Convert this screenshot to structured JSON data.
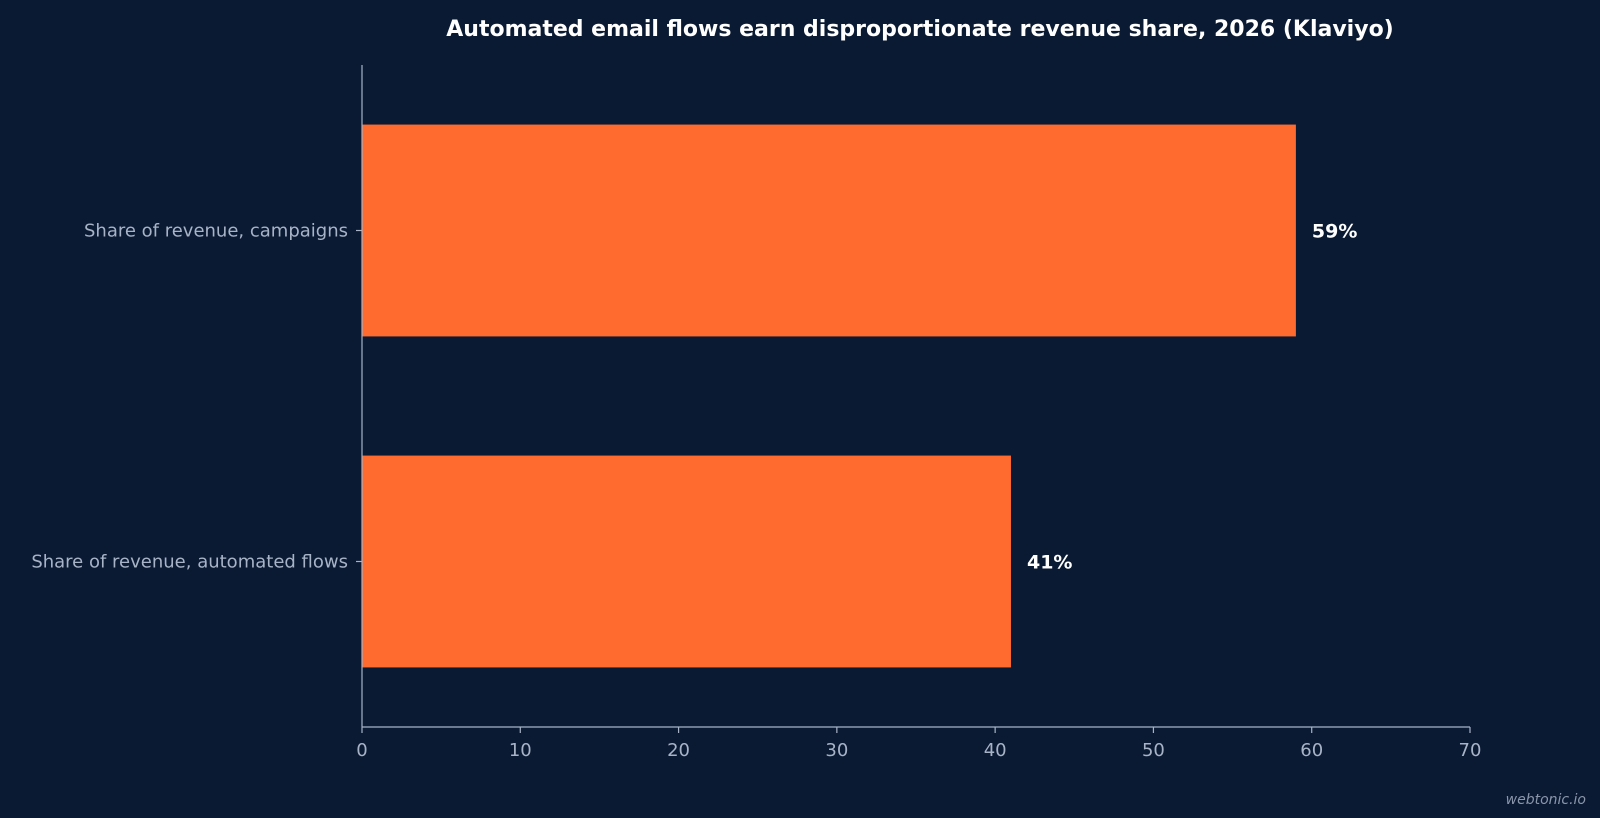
{
  "chart_data": {
    "type": "bar",
    "orientation": "horizontal",
    "title": "Automated email flows earn disproportionate revenue share, 2026 (Klaviyo)",
    "categories": [
      "Share of revenue, campaigns",
      "Share of revenue, automated flows"
    ],
    "values": [
      59,
      41
    ],
    "value_labels": [
      "59%",
      "41%"
    ],
    "xlim": [
      0,
      70
    ],
    "xticks": [
      0,
      10,
      20,
      30,
      40,
      50,
      60,
      70
    ],
    "xlabel": "",
    "ylabel": "",
    "grid": false,
    "bar_color": "#ff6b2e"
  },
  "watermark": "webtonic.io"
}
